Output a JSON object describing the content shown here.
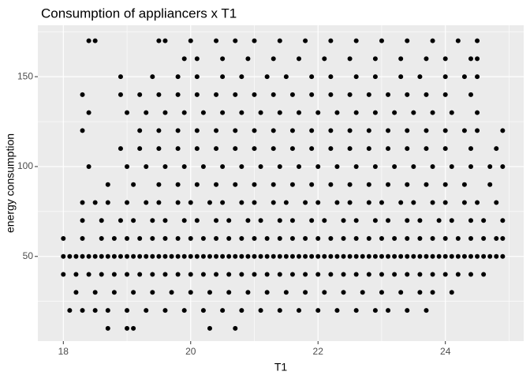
{
  "chart_data": {
    "type": "scatter",
    "title": "Consumption of appliancers x T1",
    "x_label": "T1",
    "y_label": "energy consumption",
    "color": "#000000",
    "grid": true,
    "xlim": [
      17.6,
      25.23
    ],
    "ylim": [
      2.9,
      178.6
    ],
    "xticks": [
      18,
      20,
      22,
      24
    ],
    "yticks": [
      50,
      100,
      150
    ],
    "points": [
      [
        18.7,
        10
      ],
      [
        19.0,
        10
      ],
      [
        19.1,
        10
      ],
      [
        20.3,
        10
      ],
      [
        20.7,
        10
      ],
      [
        18.1,
        20
      ],
      [
        18.3,
        20
      ],
      [
        18.5,
        20
      ],
      [
        18.7,
        20
      ],
      [
        19.0,
        20
      ],
      [
        19.3,
        20
      ],
      [
        19.6,
        20
      ],
      [
        19.9,
        20
      ],
      [
        20.2,
        20
      ],
      [
        20.5,
        20
      ],
      [
        20.8,
        20
      ],
      [
        21.1,
        20
      ],
      [
        21.4,
        20
      ],
      [
        21.7,
        20
      ],
      [
        22.0,
        20
      ],
      [
        22.3,
        20
      ],
      [
        22.6,
        20
      ],
      [
        22.9,
        20
      ],
      [
        23.1,
        20
      ],
      [
        23.4,
        20
      ],
      [
        23.7,
        20
      ],
      [
        18.2,
        30
      ],
      [
        18.5,
        30
      ],
      [
        18.8,
        30
      ],
      [
        19.1,
        30
      ],
      [
        19.4,
        30
      ],
      [
        19.7,
        30
      ],
      [
        20.0,
        30
      ],
      [
        20.3,
        30
      ],
      [
        20.6,
        30
      ],
      [
        20.9,
        30
      ],
      [
        21.2,
        30
      ],
      [
        21.5,
        30
      ],
      [
        21.8,
        30
      ],
      [
        22.1,
        30
      ],
      [
        22.4,
        30
      ],
      [
        22.7,
        30
      ],
      [
        23.0,
        30
      ],
      [
        23.3,
        30
      ],
      [
        23.6,
        30
      ],
      [
        23.8,
        30
      ],
      [
        24.1,
        30
      ],
      [
        18.0,
        40
      ],
      [
        18.2,
        40
      ],
      [
        18.4,
        40
      ],
      [
        18.6,
        40
      ],
      [
        18.8,
        40
      ],
      [
        19.0,
        40
      ],
      [
        19.2,
        40
      ],
      [
        19.4,
        40
      ],
      [
        19.6,
        40
      ],
      [
        19.8,
        40
      ],
      [
        20.0,
        40
      ],
      [
        20.2,
        40
      ],
      [
        20.4,
        40
      ],
      [
        20.6,
        40
      ],
      [
        20.8,
        40
      ],
      [
        21.0,
        40
      ],
      [
        21.2,
        40
      ],
      [
        21.4,
        40
      ],
      [
        21.6,
        40
      ],
      [
        21.8,
        40
      ],
      [
        22.0,
        40
      ],
      [
        22.2,
        40
      ],
      [
        22.4,
        40
      ],
      [
        22.6,
        40
      ],
      [
        22.8,
        40
      ],
      [
        23.0,
        40
      ],
      [
        23.2,
        40
      ],
      [
        23.4,
        40
      ],
      [
        23.6,
        40
      ],
      [
        23.8,
        40
      ],
      [
        24.0,
        40
      ],
      [
        24.2,
        40
      ],
      [
        24.4,
        40
      ],
      [
        24.6,
        40
      ],
      [
        18.0,
        50
      ],
      [
        18.1,
        50
      ],
      [
        18.2,
        50
      ],
      [
        18.3,
        50
      ],
      [
        18.4,
        50
      ],
      [
        18.5,
        50
      ],
      [
        18.6,
        50
      ],
      [
        18.7,
        50
      ],
      [
        18.8,
        50
      ],
      [
        18.9,
        50
      ],
      [
        19.0,
        50
      ],
      [
        19.1,
        50
      ],
      [
        19.2,
        50
      ],
      [
        19.3,
        50
      ],
      [
        19.4,
        50
      ],
      [
        19.5,
        50
      ],
      [
        19.6,
        50
      ],
      [
        19.7,
        50
      ],
      [
        19.8,
        50
      ],
      [
        19.9,
        50
      ],
      [
        20.0,
        50
      ],
      [
        20.1,
        50
      ],
      [
        20.2,
        50
      ],
      [
        20.3,
        50
      ],
      [
        20.4,
        50
      ],
      [
        20.5,
        50
      ],
      [
        20.6,
        50
      ],
      [
        20.7,
        50
      ],
      [
        20.8,
        50
      ],
      [
        20.9,
        50
      ],
      [
        21.0,
        50
      ],
      [
        21.1,
        50
      ],
      [
        21.2,
        50
      ],
      [
        21.3,
        50
      ],
      [
        21.4,
        50
      ],
      [
        21.5,
        50
      ],
      [
        21.6,
        50
      ],
      [
        21.7,
        50
      ],
      [
        21.8,
        50
      ],
      [
        21.9,
        50
      ],
      [
        22.0,
        50
      ],
      [
        22.1,
        50
      ],
      [
        22.2,
        50
      ],
      [
        22.3,
        50
      ],
      [
        22.4,
        50
      ],
      [
        22.5,
        50
      ],
      [
        22.6,
        50
      ],
      [
        22.7,
        50
      ],
      [
        22.8,
        50
      ],
      [
        22.9,
        50
      ],
      [
        23.0,
        50
      ],
      [
        23.1,
        50
      ],
      [
        23.2,
        50
      ],
      [
        23.3,
        50
      ],
      [
        23.4,
        50
      ],
      [
        23.5,
        50
      ],
      [
        23.6,
        50
      ],
      [
        23.7,
        50
      ],
      [
        23.8,
        50
      ],
      [
        23.9,
        50
      ],
      [
        24.0,
        50
      ],
      [
        24.1,
        50
      ],
      [
        24.2,
        50
      ],
      [
        24.3,
        50
      ],
      [
        24.4,
        50
      ],
      [
        24.5,
        50
      ],
      [
        24.6,
        50
      ],
      [
        24.7,
        50
      ],
      [
        24.8,
        50
      ],
      [
        24.9,
        50
      ],
      [
        18.0,
        60
      ],
      [
        18.3,
        60
      ],
      [
        18.6,
        60
      ],
      [
        18.8,
        60
      ],
      [
        19.0,
        60
      ],
      [
        19.2,
        60
      ],
      [
        19.4,
        60
      ],
      [
        19.6,
        60
      ],
      [
        19.8,
        60
      ],
      [
        20.0,
        60
      ],
      [
        20.2,
        60
      ],
      [
        20.4,
        60
      ],
      [
        20.6,
        60
      ],
      [
        20.8,
        60
      ],
      [
        21.0,
        60
      ],
      [
        21.2,
        60
      ],
      [
        21.4,
        60
      ],
      [
        21.6,
        60
      ],
      [
        21.8,
        60
      ],
      [
        22.0,
        60
      ],
      [
        22.2,
        60
      ],
      [
        22.4,
        60
      ],
      [
        22.6,
        60
      ],
      [
        22.8,
        60
      ],
      [
        23.0,
        60
      ],
      [
        23.2,
        60
      ],
      [
        23.4,
        60
      ],
      [
        23.6,
        60
      ],
      [
        23.8,
        60
      ],
      [
        24.0,
        60
      ],
      [
        24.2,
        60
      ],
      [
        24.4,
        60
      ],
      [
        24.6,
        60
      ],
      [
        24.8,
        60
      ],
      [
        24.9,
        60
      ],
      [
        18.3,
        70
      ],
      [
        18.6,
        70
      ],
      [
        18.9,
        70
      ],
      [
        19.1,
        70
      ],
      [
        19.4,
        70
      ],
      [
        19.6,
        70
      ],
      [
        19.9,
        70
      ],
      [
        20.1,
        70
      ],
      [
        20.4,
        70
      ],
      [
        20.6,
        70
      ],
      [
        20.9,
        70
      ],
      [
        21.1,
        70
      ],
      [
        21.4,
        70
      ],
      [
        21.6,
        70
      ],
      [
        21.9,
        70
      ],
      [
        22.1,
        70
      ],
      [
        22.4,
        70
      ],
      [
        22.6,
        70
      ],
      [
        22.9,
        70
      ],
      [
        23.1,
        70
      ],
      [
        23.4,
        70
      ],
      [
        23.6,
        70
      ],
      [
        23.9,
        70
      ],
      [
        24.1,
        70
      ],
      [
        24.4,
        70
      ],
      [
        24.6,
        70
      ],
      [
        24.9,
        70
      ],
      [
        18.3,
        80
      ],
      [
        18.5,
        80
      ],
      [
        18.7,
        80
      ],
      [
        19.0,
        80
      ],
      [
        19.3,
        80
      ],
      [
        19.5,
        80
      ],
      [
        19.8,
        80
      ],
      [
        20.0,
        80
      ],
      [
        20.3,
        80
      ],
      [
        20.5,
        80
      ],
      [
        20.8,
        80
      ],
      [
        21.0,
        80
      ],
      [
        21.3,
        80
      ],
      [
        21.5,
        80
      ],
      [
        21.8,
        80
      ],
      [
        22.0,
        80
      ],
      [
        22.3,
        80
      ],
      [
        22.5,
        80
      ],
      [
        22.8,
        80
      ],
      [
        23.0,
        80
      ],
      [
        23.3,
        80
      ],
      [
        23.5,
        80
      ],
      [
        23.8,
        80
      ],
      [
        24.0,
        80
      ],
      [
        24.3,
        80
      ],
      [
        24.5,
        80
      ],
      [
        24.8,
        80
      ],
      [
        18.7,
        90
      ],
      [
        19.1,
        90
      ],
      [
        19.5,
        90
      ],
      [
        19.8,
        90
      ],
      [
        20.1,
        90
      ],
      [
        20.4,
        90
      ],
      [
        20.7,
        90
      ],
      [
        21.0,
        90
      ],
      [
        21.3,
        90
      ],
      [
        21.6,
        90
      ],
      [
        21.9,
        90
      ],
      [
        22.2,
        90
      ],
      [
        22.5,
        90
      ],
      [
        22.8,
        90
      ],
      [
        23.1,
        90
      ],
      [
        23.4,
        90
      ],
      [
        23.7,
        90
      ],
      [
        24.0,
        90
      ],
      [
        24.3,
        90
      ],
      [
        24.7,
        90
      ],
      [
        18.4,
        100
      ],
      [
        19.0,
        100
      ],
      [
        19.3,
        100
      ],
      [
        19.6,
        100
      ],
      [
        19.9,
        100
      ],
      [
        20.2,
        100
      ],
      [
        20.5,
        100
      ],
      [
        20.8,
        100
      ],
      [
        21.1,
        100
      ],
      [
        21.4,
        100
      ],
      [
        21.7,
        100
      ],
      [
        22.0,
        100
      ],
      [
        22.3,
        100
      ],
      [
        22.6,
        100
      ],
      [
        22.9,
        100
      ],
      [
        23.2,
        100
      ],
      [
        23.5,
        100
      ],
      [
        23.8,
        100
      ],
      [
        24.1,
        100
      ],
      [
        24.4,
        100
      ],
      [
        24.7,
        100
      ],
      [
        24.9,
        100
      ],
      [
        18.9,
        110
      ],
      [
        19.2,
        110
      ],
      [
        19.5,
        110
      ],
      [
        19.8,
        110
      ],
      [
        20.1,
        110
      ],
      [
        20.4,
        110
      ],
      [
        20.7,
        110
      ],
      [
        21.0,
        110
      ],
      [
        21.3,
        110
      ],
      [
        21.6,
        110
      ],
      [
        21.9,
        110
      ],
      [
        22.2,
        110
      ],
      [
        22.5,
        110
      ],
      [
        22.8,
        110
      ],
      [
        23.1,
        110
      ],
      [
        23.4,
        110
      ],
      [
        23.7,
        110
      ],
      [
        24.0,
        110
      ],
      [
        24.4,
        110
      ],
      [
        24.8,
        110
      ],
      [
        18.3,
        120
      ],
      [
        19.2,
        120
      ],
      [
        19.5,
        120
      ],
      [
        19.8,
        120
      ],
      [
        20.1,
        120
      ],
      [
        20.4,
        120
      ],
      [
        20.7,
        120
      ],
      [
        21.0,
        120
      ],
      [
        21.3,
        120
      ],
      [
        21.6,
        120
      ],
      [
        21.9,
        120
      ],
      [
        22.2,
        120
      ],
      [
        22.5,
        120
      ],
      [
        22.8,
        120
      ],
      [
        23.1,
        120
      ],
      [
        23.4,
        120
      ],
      [
        23.7,
        120
      ],
      [
        24.0,
        120
      ],
      [
        24.3,
        120
      ],
      [
        24.5,
        120
      ],
      [
        24.9,
        120
      ],
      [
        18.4,
        130
      ],
      [
        19.0,
        130
      ],
      [
        19.3,
        130
      ],
      [
        19.6,
        130
      ],
      [
        19.9,
        130
      ],
      [
        20.2,
        130
      ],
      [
        20.5,
        130
      ],
      [
        20.8,
        130
      ],
      [
        21.1,
        130
      ],
      [
        21.4,
        130
      ],
      [
        21.7,
        130
      ],
      [
        22.0,
        130
      ],
      [
        22.3,
        130
      ],
      [
        22.6,
        130
      ],
      [
        22.9,
        130
      ],
      [
        23.2,
        130
      ],
      [
        23.5,
        130
      ],
      [
        23.8,
        130
      ],
      [
        24.1,
        130
      ],
      [
        24.5,
        130
      ],
      [
        18.3,
        140
      ],
      [
        18.9,
        140
      ],
      [
        19.2,
        140
      ],
      [
        19.5,
        140
      ],
      [
        19.8,
        140
      ],
      [
        20.1,
        140
      ],
      [
        20.4,
        140
      ],
      [
        20.7,
        140
      ],
      [
        21.0,
        140
      ],
      [
        21.3,
        140
      ],
      [
        21.6,
        140
      ],
      [
        21.9,
        140
      ],
      [
        22.2,
        140
      ],
      [
        22.5,
        140
      ],
      [
        22.8,
        140
      ],
      [
        23.1,
        140
      ],
      [
        23.4,
        140
      ],
      [
        23.7,
        140
      ],
      [
        24.0,
        140
      ],
      [
        24.4,
        140
      ],
      [
        18.9,
        150
      ],
      [
        19.4,
        150
      ],
      [
        19.8,
        150
      ],
      [
        20.1,
        150
      ],
      [
        20.5,
        150
      ],
      [
        20.8,
        150
      ],
      [
        21.2,
        150
      ],
      [
        21.5,
        150
      ],
      [
        21.9,
        150
      ],
      [
        22.2,
        150
      ],
      [
        22.6,
        150
      ],
      [
        22.9,
        150
      ],
      [
        23.3,
        150
      ],
      [
        23.6,
        150
      ],
      [
        24.0,
        150
      ],
      [
        24.3,
        150
      ],
      [
        24.5,
        150
      ],
      [
        19.9,
        160
      ],
      [
        20.1,
        160
      ],
      [
        20.5,
        160
      ],
      [
        20.9,
        160
      ],
      [
        21.3,
        160
      ],
      [
        21.7,
        160
      ],
      [
        22.1,
        160
      ],
      [
        22.5,
        160
      ],
      [
        22.9,
        160
      ],
      [
        23.3,
        160
      ],
      [
        23.7,
        160
      ],
      [
        24.0,
        160
      ],
      [
        24.4,
        160
      ],
      [
        24.5,
        160
      ],
      [
        18.4,
        170
      ],
      [
        18.5,
        170
      ],
      [
        19.5,
        170
      ],
      [
        19.6,
        170
      ],
      [
        20.0,
        170
      ],
      [
        20.4,
        170
      ],
      [
        20.7,
        170
      ],
      [
        21.0,
        170
      ],
      [
        21.4,
        170
      ],
      [
        21.8,
        170
      ],
      [
        22.2,
        170
      ],
      [
        22.6,
        170
      ],
      [
        23.0,
        170
      ],
      [
        23.4,
        170
      ],
      [
        23.8,
        170
      ],
      [
        24.2,
        170
      ],
      [
        24.5,
        170
      ]
    ]
  }
}
